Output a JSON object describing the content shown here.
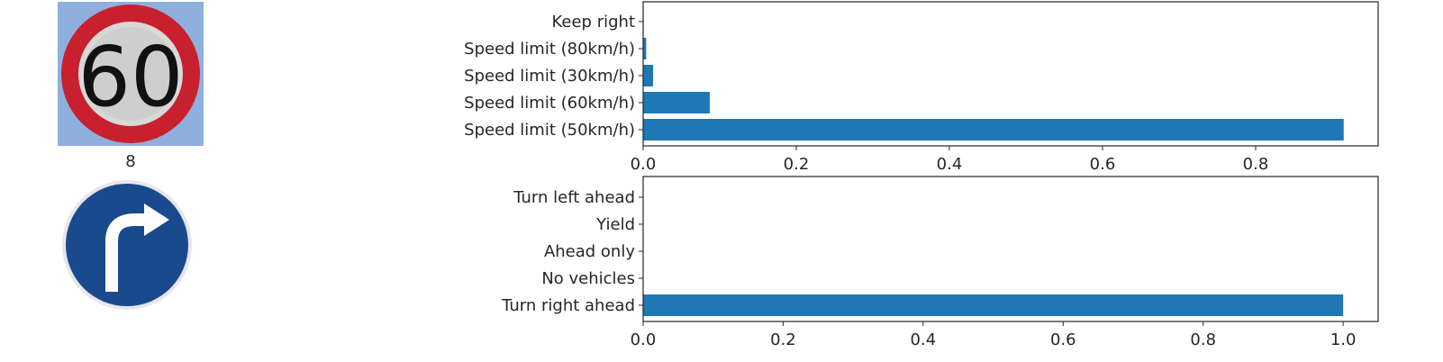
{
  "colors": {
    "bar": "#1f77b4",
    "axis": "#262626"
  },
  "panels": [
    {
      "image_icon": "speed-limit-60-sign-icon",
      "image_text": "60",
      "caption": ""
    },
    {
      "image_icon": "turn-right-ahead-sign-icon",
      "image_text": "",
      "caption": "8"
    }
  ],
  "chart_data": [
    {
      "type": "bar",
      "orientation": "horizontal",
      "categories": [
        "Speed limit (50km/h)",
        "Speed limit (60km/h)",
        "Speed limit (30km/h)",
        "Speed limit (80km/h)",
        "Keep right"
      ],
      "values": [
        0.915,
        0.087,
        0.013,
        0.004,
        0.0007
      ],
      "xlim": [
        0,
        0.96
      ],
      "xticks": [
        0.0,
        0.2,
        0.4,
        0.6,
        0.8
      ],
      "xtick_labels": [
        "0.0",
        "0.2",
        "0.4",
        "0.6",
        "0.8"
      ],
      "top_edge_cut": true,
      "title": "",
      "xlabel": "",
      "ylabel": ""
    },
    {
      "type": "bar",
      "orientation": "horizontal",
      "categories": [
        "Turn right ahead",
        "No vehicles",
        "Ahead only",
        "Yield",
        "Turn left ahead"
      ],
      "values": [
        1.0,
        0.0,
        0.0,
        0.0,
        0.0
      ],
      "xlim": [
        0,
        1.05
      ],
      "xticks": [
        0.0,
        0.2,
        0.4,
        0.6,
        0.8,
        1.0
      ],
      "xtick_labels": [
        "0.0",
        "0.2",
        "0.4",
        "0.6",
        "0.8",
        "1.0"
      ],
      "top_edge_cut": false,
      "title": "",
      "xlabel": "",
      "ylabel": ""
    }
  ]
}
